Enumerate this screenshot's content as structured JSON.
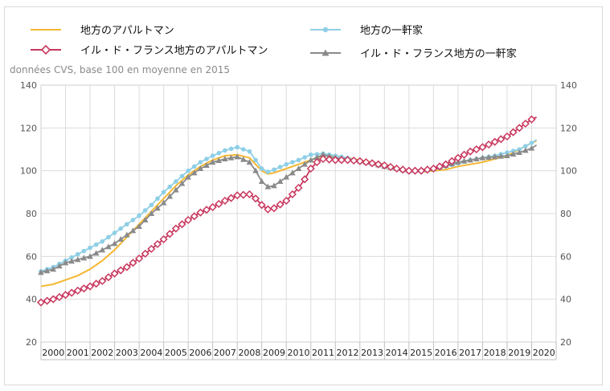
{
  "chart_data": {
    "type": "line",
    "subtitle": "données CVS, base 100 en moyenne en 2015",
    "x_categories": [
      "2000",
      "2001",
      "2002",
      "2003",
      "2004",
      "2005",
      "2006",
      "2007",
      "2008",
      "2009",
      "2010",
      "2011",
      "2012",
      "2013",
      "2014",
      "2015",
      "2016",
      "2017",
      "2018",
      "2019",
      "2020"
    ],
    "ylim": [
      20,
      140
    ],
    "yticks": [
      20,
      40,
      60,
      80,
      100,
      120,
      140
    ],
    "grid": true,
    "legend_position": "top",
    "series": [
      {
        "name": "地方のアパルトマン",
        "color": "#f5b731",
        "marker": "none",
        "points": [
          [
            2000.0,
            46
          ],
          [
            2000.5,
            47
          ],
          [
            2001.0,
            49
          ],
          [
            2001.5,
            51
          ],
          [
            2002.0,
            54
          ],
          [
            2002.5,
            58
          ],
          [
            2003.0,
            63
          ],
          [
            2003.5,
            69
          ],
          [
            2004.0,
            75
          ],
          [
            2004.5,
            81
          ],
          [
            2005.0,
            87
          ],
          [
            2005.5,
            93
          ],
          [
            2006.0,
            98
          ],
          [
            2006.5,
            102
          ],
          [
            2007.0,
            105
          ],
          [
            2007.5,
            107
          ],
          [
            2008.0,
            107.5
          ],
          [
            2008.5,
            106
          ],
          [
            2009.0,
            100
          ],
          [
            2009.25,
            98.5
          ],
          [
            2009.5,
            99
          ],
          [
            2010.0,
            101
          ],
          [
            2010.5,
            103
          ],
          [
            2011.0,
            105
          ],
          [
            2011.5,
            107
          ],
          [
            2012.0,
            107
          ],
          [
            2012.5,
            106
          ],
          [
            2013.0,
            105
          ],
          [
            2013.5,
            104
          ],
          [
            2014.0,
            103
          ],
          [
            2014.5,
            101.5
          ],
          [
            2015.0,
            100
          ],
          [
            2015.5,
            99.5
          ],
          [
            2016.0,
            100
          ],
          [
            2016.5,
            100.5
          ],
          [
            2017.0,
            102
          ],
          [
            2017.5,
            103
          ],
          [
            2018.0,
            104
          ],
          [
            2018.5,
            105.5
          ],
          [
            2019.0,
            107
          ],
          [
            2019.5,
            110
          ],
          [
            2020.0,
            113
          ],
          [
            2020.2,
            114
          ]
        ]
      },
      {
        "name": "イル・ド・フランス地方のアパルトマン",
        "color": "#c8385e",
        "marker": "diamond",
        "points": [
          [
            2000.0,
            38.5
          ],
          [
            2000.5,
            40
          ],
          [
            2001.0,
            42
          ],
          [
            2001.5,
            44
          ],
          [
            2002.0,
            46
          ],
          [
            2002.5,
            48.5
          ],
          [
            2003.0,
            52
          ],
          [
            2003.5,
            55
          ],
          [
            2004.0,
            59
          ],
          [
            2004.5,
            63.5
          ],
          [
            2005.0,
            68
          ],
          [
            2005.5,
            73
          ],
          [
            2006.0,
            77
          ],
          [
            2006.5,
            80.5
          ],
          [
            2007.0,
            83
          ],
          [
            2007.5,
            86
          ],
          [
            2008.0,
            88.5
          ],
          [
            2008.5,
            89
          ],
          [
            2008.75,
            87
          ],
          [
            2009.0,
            84
          ],
          [
            2009.25,
            82
          ],
          [
            2009.5,
            82.5
          ],
          [
            2010.0,
            86
          ],
          [
            2010.5,
            92
          ],
          [
            2010.75,
            96
          ],
          [
            2011.0,
            101
          ],
          [
            2011.25,
            104
          ],
          [
            2011.5,
            105.5
          ],
          [
            2012.0,
            105
          ],
          [
            2012.5,
            105
          ],
          [
            2013.0,
            104.5
          ],
          [
            2013.5,
            103.5
          ],
          [
            2014.0,
            102.5
          ],
          [
            2014.5,
            101
          ],
          [
            2015.0,
            100
          ],
          [
            2015.5,
            100
          ],
          [
            2016.0,
            101
          ],
          [
            2016.5,
            103
          ],
          [
            2017.0,
            106
          ],
          [
            2017.5,
            109
          ],
          [
            2018.0,
            111
          ],
          [
            2018.5,
            113.5
          ],
          [
            2019.0,
            116
          ],
          [
            2019.5,
            120
          ],
          [
            2020.0,
            124
          ],
          [
            2020.2,
            125
          ]
        ]
      },
      {
        "name": "地方の一軒家",
        "color": "#8ecfe6",
        "marker": "circle",
        "points": [
          [
            2000.0,
            53
          ],
          [
            2000.5,
            55
          ],
          [
            2001.0,
            58
          ],
          [
            2001.5,
            61
          ],
          [
            2002.0,
            64
          ],
          [
            2002.5,
            67
          ],
          [
            2003.0,
            71
          ],
          [
            2003.5,
            75
          ],
          [
            2004.0,
            79
          ],
          [
            2004.5,
            84
          ],
          [
            2005.0,
            90
          ],
          [
            2005.5,
            95
          ],
          [
            2006.0,
            100
          ],
          [
            2006.5,
            104
          ],
          [
            2007.0,
            107
          ],
          [
            2007.5,
            109.5
          ],
          [
            2008.0,
            111
          ],
          [
            2008.5,
            109
          ],
          [
            2009.0,
            101
          ],
          [
            2009.25,
            99.5
          ],
          [
            2009.5,
            100.5
          ],
          [
            2010.0,
            103
          ],
          [
            2010.5,
            105
          ],
          [
            2011.0,
            107.5
          ],
          [
            2011.5,
            108
          ],
          [
            2012.0,
            107
          ],
          [
            2012.5,
            106
          ],
          [
            2013.0,
            104.5
          ],
          [
            2013.5,
            103.5
          ],
          [
            2014.0,
            102.5
          ],
          [
            2014.5,
            101
          ],
          [
            2015.0,
            100
          ],
          [
            2015.5,
            99.5
          ],
          [
            2016.0,
            100.5
          ],
          [
            2016.5,
            102
          ],
          [
            2017.0,
            103.5
          ],
          [
            2017.5,
            105
          ],
          [
            2018.0,
            106
          ],
          [
            2018.5,
            107
          ],
          [
            2019.0,
            108.5
          ],
          [
            2019.5,
            110
          ],
          [
            2020.0,
            113
          ],
          [
            2020.2,
            114.5
          ]
        ]
      },
      {
        "name": "イル・ド・フランス地方の一軒家",
        "color": "#8a8a8a",
        "marker": "triangle",
        "points": [
          [
            2000.0,
            52.5
          ],
          [
            2000.5,
            54
          ],
          [
            2001.0,
            57
          ],
          [
            2001.5,
            58.5
          ],
          [
            2002.0,
            60
          ],
          [
            2002.5,
            63
          ],
          [
            2003.0,
            66
          ],
          [
            2003.5,
            70
          ],
          [
            2004.0,
            74
          ],
          [
            2004.5,
            80
          ],
          [
            2005.0,
            85
          ],
          [
            2005.5,
            91
          ],
          [
            2006.0,
            97
          ],
          [
            2006.5,
            101
          ],
          [
            2007.0,
            104
          ],
          [
            2007.5,
            105.5
          ],
          [
            2008.0,
            106.5
          ],
          [
            2008.5,
            104
          ],
          [
            2008.75,
            100
          ],
          [
            2009.0,
            95
          ],
          [
            2009.25,
            92.5
          ],
          [
            2009.5,
            93
          ],
          [
            2010.0,
            97
          ],
          [
            2010.5,
            101
          ],
          [
            2011.0,
            105
          ],
          [
            2011.5,
            107.5
          ],
          [
            2012.0,
            106
          ],
          [
            2012.5,
            105.5
          ],
          [
            2013.0,
            104.5
          ],
          [
            2013.5,
            103.5
          ],
          [
            2014.0,
            102
          ],
          [
            2014.5,
            101
          ],
          [
            2015.0,
            100
          ],
          [
            2015.5,
            100.5
          ],
          [
            2016.0,
            101
          ],
          [
            2016.5,
            102.5
          ],
          [
            2017.0,
            104
          ],
          [
            2017.5,
            105
          ],
          [
            2018.0,
            106
          ],
          [
            2018.5,
            106.5
          ],
          [
            2019.0,
            107
          ],
          [
            2019.5,
            108.5
          ],
          [
            2020.0,
            110.5
          ],
          [
            2020.2,
            112
          ]
        ]
      }
    ]
  }
}
